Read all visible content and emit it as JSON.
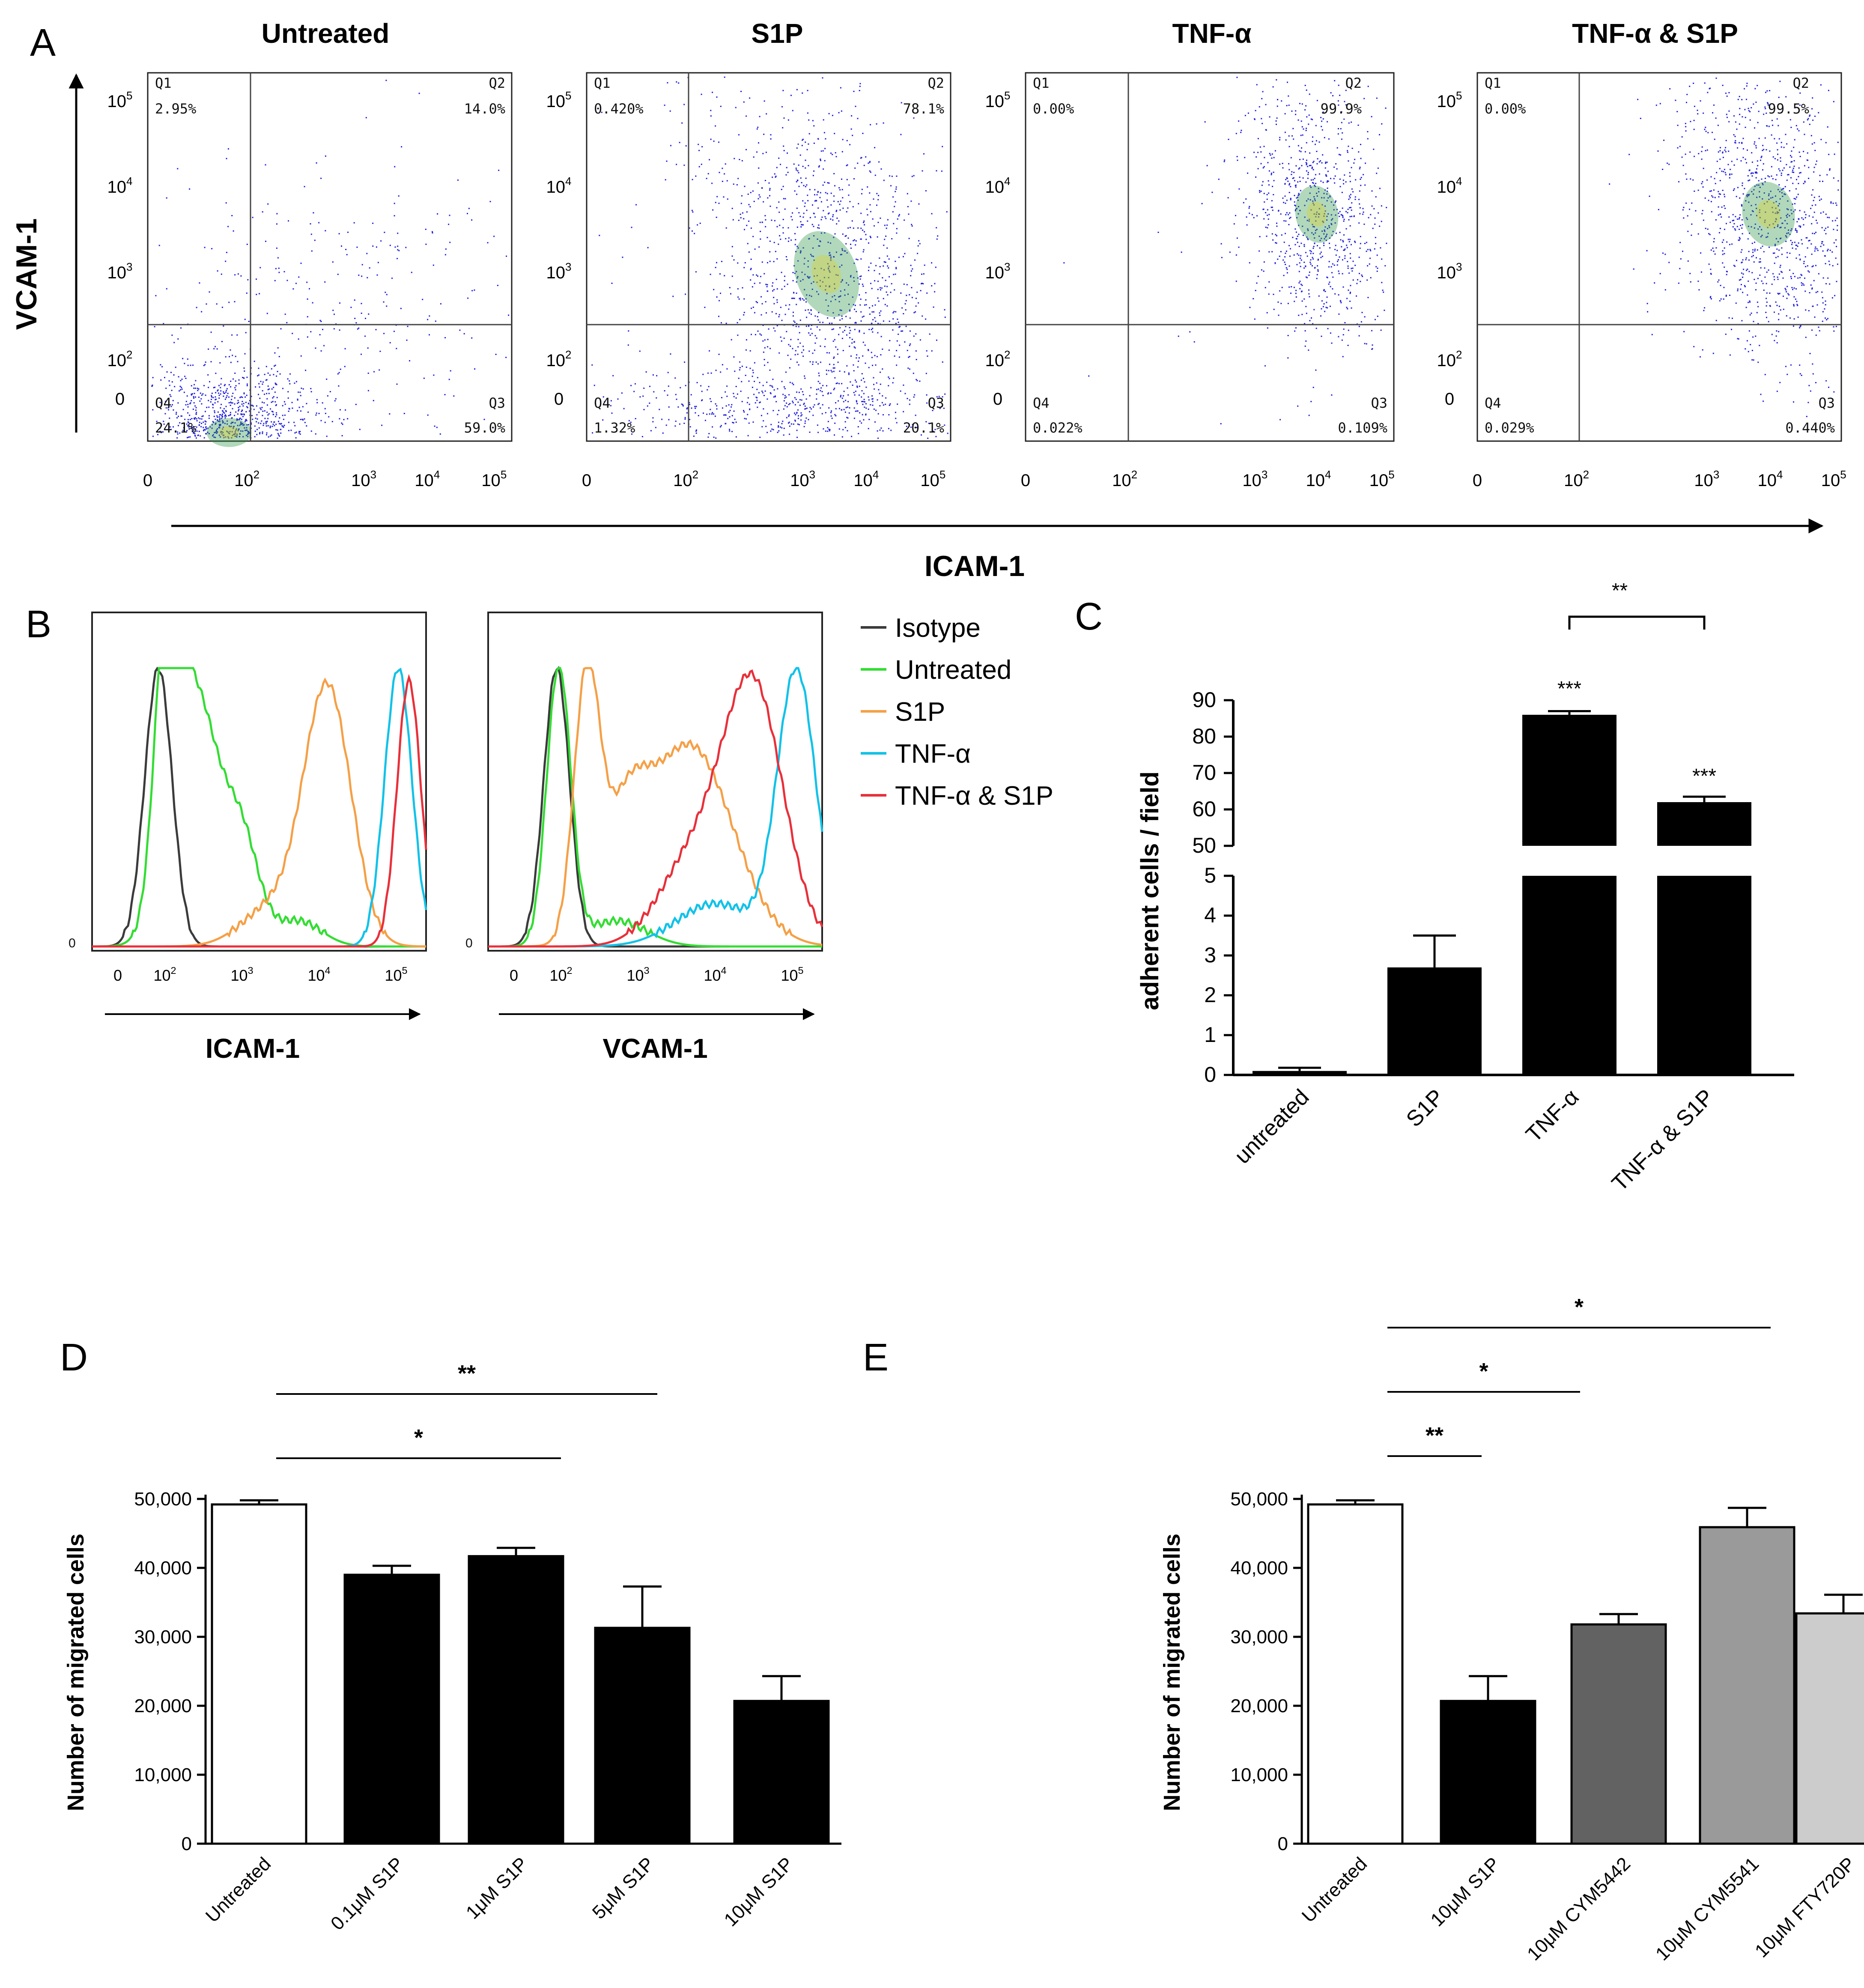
{
  "colors": {
    "isotype": "#3b3b3b",
    "untreated": "#33dd33",
    "s1p": "#f5a047",
    "tnf": "#12c2e8",
    "tnf_s1p": "#e8303a",
    "bar_black": "#000000",
    "cym5442": "#626262",
    "cym5541": "#9a9a9a",
    "fty720p": "#cccccc",
    "dots": "#2222dd"
  },
  "panel_a": {
    "letter": "A",
    "y_axis_label": "VCAM-1",
    "x_axis_label": "ICAM-1",
    "x_ticks": [
      "0",
      "10",
      "10",
      "10",
      "10"
    ],
    "x_tick_exps": [
      "",
      "2",
      "3",
      "4",
      "5"
    ],
    "y_ticks": [
      "0",
      "10",
      "10",
      "10",
      "10"
    ],
    "y_tick_exps": [
      "",
      "2",
      "3",
      "4",
      "5"
    ],
    "plots": [
      {
        "title": "Untreated",
        "q1_label": "Q1",
        "q1": "2.95%",
        "q2_label": "Q2",
        "q2": "14.0%",
        "q3_label": "Q3",
        "q3": "59.0%",
        "q4_label": "Q4",
        "q4": "24.1%"
      },
      {
        "title": "S1P",
        "q1_label": "Q1",
        "q1": "0.420%",
        "q2_label": "Q2",
        "q2": "78.1%",
        "q3_label": "Q3",
        "q3": "20.1%",
        "q4_label": "Q4",
        "q4": "1.32%"
      },
      {
        "title": "TNF-α",
        "q1_label": "Q1",
        "q1": "0.00%",
        "q2_label": "Q2",
        "q2": "99.9%",
        "q3_label": "Q3",
        "q3": "0.109%",
        "q4_label": "Q4",
        "q4": "0.022%"
      },
      {
        "title": "TNF-α & S1P",
        "q1_label": "Q1",
        "q1": "0.00%",
        "q2_label": "Q2",
        "q2": "99.5%",
        "q3_label": "Q3",
        "q3": "0.440%",
        "q4_label": "Q4",
        "q4": "0.029%"
      }
    ]
  },
  "panel_b": {
    "letter": "B",
    "y_tick": "0",
    "x_ticks": [
      "0",
      "10",
      "10",
      "10",
      "10"
    ],
    "x_tick_exps": [
      "",
      "2",
      "3",
      "4",
      "5"
    ],
    "plot1_xlabel": "ICAM-1",
    "plot2_xlabel": "VCAM-1",
    "legend": [
      "Isotype",
      "Untreated",
      "S1P",
      "TNF-α",
      "TNF-α & S1P"
    ]
  },
  "chart_data": [
    {
      "type": "bar",
      "panel": "C",
      "title": "",
      "ylabel": "adherent cells / field",
      "categories": [
        "untreated",
        "S1P",
        "TNF-α",
        "TNF-α & S1P"
      ],
      "values": [
        0.1,
        2.7,
        86,
        62
      ],
      "errors": [
        0.08,
        0.8,
        1,
        1.5
      ],
      "axis_break": {
        "lower": [
          0,
          5
        ],
        "upper": [
          50,
          90
        ]
      },
      "yticks_lower": [
        "0",
        "1",
        "2",
        "3",
        "4",
        "5"
      ],
      "yticks_upper": [
        "50",
        "60",
        "70",
        "80",
        "90"
      ],
      "annotations": [
        "***",
        "***",
        "**"
      ]
    },
    {
      "type": "bar",
      "panel": "D",
      "title": "",
      "ylabel": "Number of migrated cells",
      "categories": [
        "Untreated",
        "0.1μM S1P",
        "1μM S1P",
        "5μM S1P",
        "10μM S1P"
      ],
      "values": [
        49200,
        39000,
        41700,
        31300,
        20700
      ],
      "errors": [
        600,
        1300,
        1200,
        6000,
        3600
      ],
      "ylim": [
        0,
        50000
      ],
      "yticks": [
        "0",
        "10,000",
        "20,000",
        "30,000",
        "40,000",
        "50,000"
      ],
      "annotations": [
        "**",
        "*"
      ]
    },
    {
      "type": "bar",
      "panel": "E",
      "title": "",
      "ylabel": "Number of migrated cells",
      "categories": [
        "Untreated",
        "10μM S1P",
        "10μM CYM5442",
        "10μM CYM5541",
        "10μM FTY720P"
      ],
      "values": [
        49200,
        20700,
        31800,
        45900,
        33400
      ],
      "errors": [
        600,
        3600,
        1500,
        2800,
        2700
      ],
      "ylim": [
        0,
        50000
      ],
      "yticks": [
        "0",
        "10,000",
        "20,000",
        "30,000",
        "40,000",
        "50,000"
      ],
      "annotations": [
        "*",
        "*",
        "**"
      ]
    }
  ],
  "panel_c": {
    "letter": "C"
  },
  "panel_d": {
    "letter": "D"
  },
  "panel_e": {
    "letter": "E"
  }
}
